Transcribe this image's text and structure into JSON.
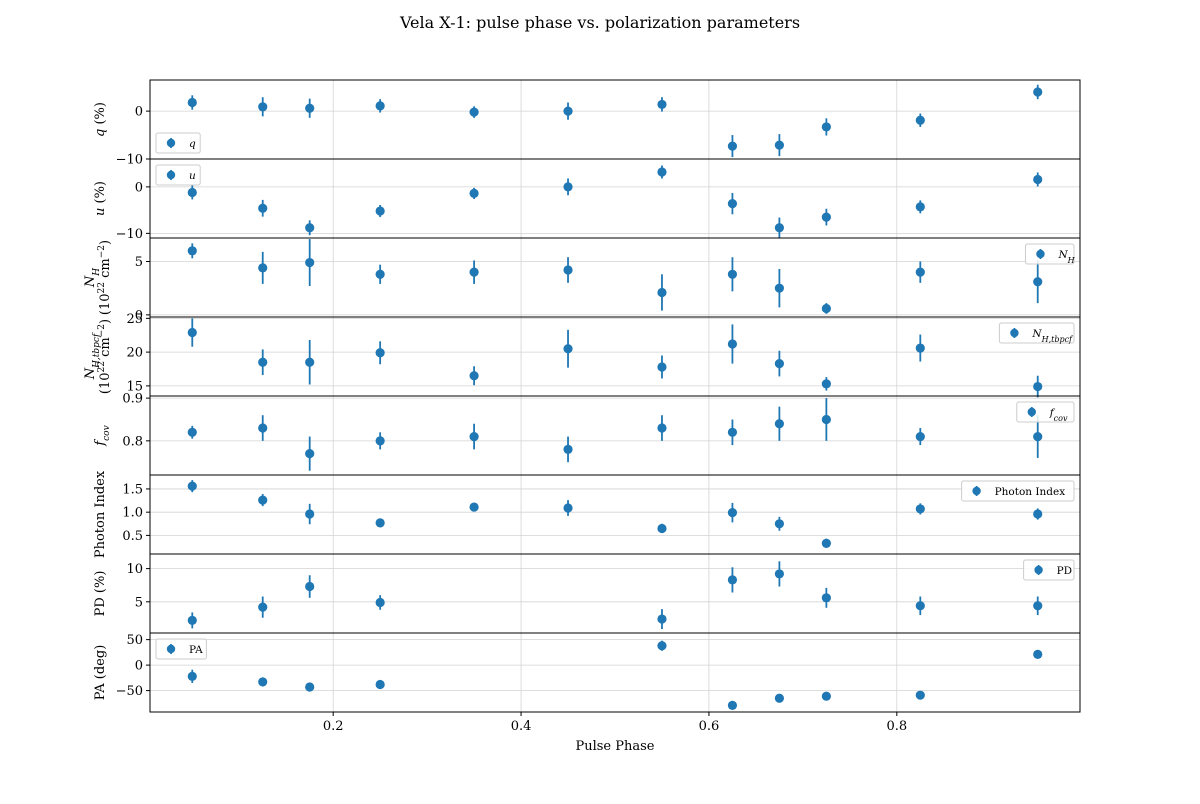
{
  "title": "Vela X-1: pulse phase vs. polarization parameters",
  "colors": {
    "marker": "#1f77b4",
    "grid": "#d3d3d3",
    "axes": "#000000"
  },
  "chart_data": {
    "type": "scatter",
    "title": "Vela X-1: pulse phase vs. polarization parameters",
    "xlabel": "Pulse Phase",
    "xlim": [
      0.005,
      0.995
    ],
    "xticks": [
      0.2,
      0.4,
      0.6,
      0.8
    ],
    "xtick_labels": [
      "0.2",
      "0.4",
      "0.6",
      "0.8"
    ],
    "grid": true,
    "x": [
      0.05,
      0.125,
      0.175,
      0.25,
      0.35,
      0.45,
      0.55,
      0.625,
      0.675,
      0.725,
      0.825,
      0.95
    ],
    "panels": [
      {
        "id": "q",
        "ylabel": {
          "main": "q",
          "suffix": " (%)"
        },
        "legend_label": "q",
        "legend_loc": "lower-left",
        "ylim": [
          -10,
          6.5
        ],
        "yticks": [
          0,
          -10
        ],
        "ytick_labels": [
          "0",
          "−10"
        ],
        "points": [
          {
            "x": 0.05,
            "y": 1.8,
            "yerr": 1.5
          },
          {
            "x": 0.125,
            "y": 0.9,
            "yerr": 2.0
          },
          {
            "x": 0.175,
            "y": 0.6,
            "yerr": 2.0
          },
          {
            "x": 0.25,
            "y": 1.1,
            "yerr": 1.4
          },
          {
            "x": 0.35,
            "y": -0.2,
            "yerr": 1.2
          },
          {
            "x": 0.45,
            "y": 0.0,
            "yerr": 1.8
          },
          {
            "x": 0.55,
            "y": 1.4,
            "yerr": 1.5
          },
          {
            "x": 0.625,
            "y": -7.3,
            "yerr": 2.3
          },
          {
            "x": 0.675,
            "y": -7.1,
            "yerr": 2.3
          },
          {
            "x": 0.725,
            "y": -3.3,
            "yerr": 1.8
          },
          {
            "x": 0.825,
            "y": -1.9,
            "yerr": 1.4
          },
          {
            "x": 0.95,
            "y": 4.0,
            "yerr": 1.5
          }
        ]
      },
      {
        "id": "u",
        "ylabel": {
          "main": "u",
          "suffix": " (%)"
        },
        "legend_label": "u",
        "legend_loc": "upper-left",
        "ylim": [
          -11,
          6
        ],
        "yticks": [
          0,
          -10
        ],
        "ytick_labels": [
          "0",
          "−10"
        ],
        "points": [
          {
            "x": 0.05,
            "y": -1.2,
            "yerr": 1.5
          },
          {
            "x": 0.125,
            "y": -4.6,
            "yerr": 1.8
          },
          {
            "x": 0.175,
            "y": -8.8,
            "yerr": 1.6
          },
          {
            "x": 0.25,
            "y": -5.2,
            "yerr": 1.3
          },
          {
            "x": 0.35,
            "y": -1.4,
            "yerr": 1.2
          },
          {
            "x": 0.45,
            "y": 0.0,
            "yerr": 1.8
          },
          {
            "x": 0.55,
            "y": 3.2,
            "yerr": 1.4
          },
          {
            "x": 0.625,
            "y": -3.6,
            "yerr": 2.3
          },
          {
            "x": 0.675,
            "y": -8.8,
            "yerr": 2.2
          },
          {
            "x": 0.725,
            "y": -6.5,
            "yerr": 1.8
          },
          {
            "x": 0.825,
            "y": -4.3,
            "yerr": 1.4
          },
          {
            "x": 0.95,
            "y": 1.6,
            "yerr": 1.5
          }
        ]
      },
      {
        "id": "nh",
        "ylabel": {
          "main": "N",
          "sub": "H",
          "line2": "(10",
          "sup2": "22",
          "line2b": " cm",
          "sup3": "−2",
          "line2c": ")"
        },
        "legend_label": "N",
        "legend_sub": "H",
        "legend_loc": "upper-right",
        "ylim": [
          -0.2,
          7.2
        ],
        "yticks": [
          5,
          0
        ],
        "ytick_labels": [
          "5",
          "0"
        ],
        "points": [
          {
            "x": 0.05,
            "y": 6.0,
            "yerr": 0.7
          },
          {
            "x": 0.125,
            "y": 4.4,
            "yerr": 1.5
          },
          {
            "x": 0.175,
            "y": 4.9,
            "yerr": 2.2
          },
          {
            "x": 0.25,
            "y": 3.8,
            "yerr": 0.9
          },
          {
            "x": 0.35,
            "y": 4.0,
            "yerr": 1.1
          },
          {
            "x": 0.45,
            "y": 4.2,
            "yerr": 1.2
          },
          {
            "x": 0.55,
            "y": 2.1,
            "yerr": 1.7
          },
          {
            "x": 0.625,
            "y": 3.8,
            "yerr": 1.6
          },
          {
            "x": 0.675,
            "y": 2.5,
            "yerr": 1.8
          },
          {
            "x": 0.725,
            "y": 0.6,
            "yerr": 0.5
          },
          {
            "x": 0.825,
            "y": 4.0,
            "yerr": 1.0
          },
          {
            "x": 0.95,
            "y": 3.1,
            "yerr": 2.0
          }
        ]
      },
      {
        "id": "nh_tbpcf",
        "ylabel": {
          "main": "N",
          "sub": "H,tbpcf",
          "line2": "(10",
          "sup2": "22",
          "line2b": " cm",
          "sup3": "−2",
          "line2c": ")"
        },
        "legend_label": "N",
        "legend_sub": "H,tbpcf",
        "legend_loc": "upper-right",
        "ylim": [
          13.5,
          25.2
        ],
        "yticks": [
          25,
          20,
          15
        ],
        "ytick_labels": [
          "25",
          "20",
          "15"
        ],
        "points": [
          {
            "x": 0.05,
            "y": 22.9,
            "yerr": 2.1
          },
          {
            "x": 0.125,
            "y": 18.5,
            "yerr": 1.9
          },
          {
            "x": 0.175,
            "y": 18.5,
            "yerr": 3.3
          },
          {
            "x": 0.25,
            "y": 19.9,
            "yerr": 1.7
          },
          {
            "x": 0.35,
            "y": 16.5,
            "yerr": 1.4
          },
          {
            "x": 0.45,
            "y": 20.5,
            "yerr": 2.8
          },
          {
            "x": 0.55,
            "y": 17.8,
            "yerr": 1.7
          },
          {
            "x": 0.625,
            "y": 21.2,
            "yerr": 2.9
          },
          {
            "x": 0.675,
            "y": 18.3,
            "yerr": 1.9
          },
          {
            "x": 0.725,
            "y": 15.3,
            "yerr": 1.0
          },
          {
            "x": 0.825,
            "y": 20.6,
            "yerr": 2.0
          },
          {
            "x": 0.95,
            "y": 14.9,
            "yerr": 1.6
          }
        ]
      },
      {
        "id": "fcov",
        "ylabel": {
          "main": "f",
          "sub": "cov"
        },
        "legend_label": "f",
        "legend_sub": "cov",
        "legend_loc": "upper-right",
        "ylim": [
          0.72,
          0.905
        ],
        "yticks": [
          0.9,
          0.8
        ],
        "ytick_labels": [
          "0.9",
          "0.8"
        ],
        "points": [
          {
            "x": 0.05,
            "y": 0.82,
            "yerr": 0.015
          },
          {
            "x": 0.125,
            "y": 0.83,
            "yerr": 0.03
          },
          {
            "x": 0.175,
            "y": 0.77,
            "yerr": 0.04
          },
          {
            "x": 0.25,
            "y": 0.8,
            "yerr": 0.02
          },
          {
            "x": 0.35,
            "y": 0.81,
            "yerr": 0.03
          },
          {
            "x": 0.45,
            "y": 0.78,
            "yerr": 0.03
          },
          {
            "x": 0.55,
            "y": 0.83,
            "yerr": 0.03
          },
          {
            "x": 0.625,
            "y": 0.82,
            "yerr": 0.03
          },
          {
            "x": 0.675,
            "y": 0.84,
            "yerr": 0.04
          },
          {
            "x": 0.725,
            "y": 0.85,
            "yerr": 0.05
          },
          {
            "x": 0.825,
            "y": 0.81,
            "yerr": 0.02
          },
          {
            "x": 0.95,
            "y": 0.81,
            "yerr": 0.05
          }
        ]
      },
      {
        "id": "photon_index",
        "ylabel": {
          "main": "Photon Index"
        },
        "legend_label": "Photon Index",
        "legend_loc": "upper-right",
        "ylim": [
          0.1,
          1.8
        ],
        "yticks": [
          1.5,
          1.0,
          0.5
        ],
        "ytick_labels": [
          "1.5",
          "1.0",
          "0.5"
        ],
        "points": [
          {
            "x": 0.05,
            "y": 1.56,
            "yerr": 0.13
          },
          {
            "x": 0.125,
            "y": 1.26,
            "yerr": 0.13
          },
          {
            "x": 0.175,
            "y": 0.96,
            "yerr": 0.22
          },
          {
            "x": 0.25,
            "y": 0.77,
            "yerr": 0.09
          },
          {
            "x": 0.35,
            "y": 1.11,
            "yerr": 0.09
          },
          {
            "x": 0.45,
            "y": 1.09,
            "yerr": 0.17
          },
          {
            "x": 0.55,
            "y": 0.65,
            "yerr": 0.1
          },
          {
            "x": 0.625,
            "y": 0.99,
            "yerr": 0.21
          },
          {
            "x": 0.675,
            "y": 0.75,
            "yerr": 0.15
          },
          {
            "x": 0.725,
            "y": 0.33,
            "yerr": 0.1
          },
          {
            "x": 0.825,
            "y": 1.07,
            "yerr": 0.12
          },
          {
            "x": 0.95,
            "y": 0.96,
            "yerr": 0.12
          }
        ]
      },
      {
        "id": "pd",
        "ylabel": {
          "main": "PD (%)"
        },
        "legend_label": "PD",
        "legend_loc": "upper-right",
        "ylim": [
          0.3,
          12.2
        ],
        "yticks": [
          10,
          5
        ],
        "ytick_labels": [
          "10",
          "5"
        ],
        "points": [
          {
            "x": 0.05,
            "y": 2.2,
            "yerr": 1.2
          },
          {
            "x": 0.125,
            "y": 4.2,
            "yerr": 1.6
          },
          {
            "x": 0.175,
            "y": 7.3,
            "yerr": 1.7
          },
          {
            "x": 0.25,
            "y": 4.9,
            "yerr": 1.1
          },
          {
            "x": 0.55,
            "y": 2.4,
            "yerr": 1.5
          },
          {
            "x": 0.625,
            "y": 8.3,
            "yerr": 1.9
          },
          {
            "x": 0.675,
            "y": 9.2,
            "yerr": 1.9
          },
          {
            "x": 0.725,
            "y": 5.6,
            "yerr": 1.5
          },
          {
            "x": 0.825,
            "y": 4.4,
            "yerr": 1.4
          },
          {
            "x": 0.95,
            "y": 4.4,
            "yerr": 1.4
          }
        ]
      },
      {
        "id": "pa",
        "ylabel": {
          "main": "PA (deg)"
        },
        "legend_label": "PA",
        "legend_loc": "upper-left",
        "ylim": [
          -92,
          63
        ],
        "yticks": [
          50,
          0,
          -50
        ],
        "ytick_labels": [
          "50",
          "0",
          "−50"
        ],
        "points": [
          {
            "x": 0.05,
            "y": -22,
            "yerr": 13
          },
          {
            "x": 0.125,
            "y": -33,
            "yerr": 9
          },
          {
            "x": 0.175,
            "y": -43,
            "yerr": 5
          },
          {
            "x": 0.25,
            "y": -38,
            "yerr": 5
          },
          {
            "x": 0.55,
            "y": 38,
            "yerr": 10
          },
          {
            "x": 0.625,
            "y": -79,
            "yerr": 5
          },
          {
            "x": 0.675,
            "y": -65,
            "yerr": 5
          },
          {
            "x": 0.725,
            "y": -61,
            "yerr": 5
          },
          {
            "x": 0.825,
            "y": -59,
            "yerr": 6
          },
          {
            "x": 0.95,
            "y": 21,
            "yerr": 5
          }
        ]
      }
    ]
  }
}
